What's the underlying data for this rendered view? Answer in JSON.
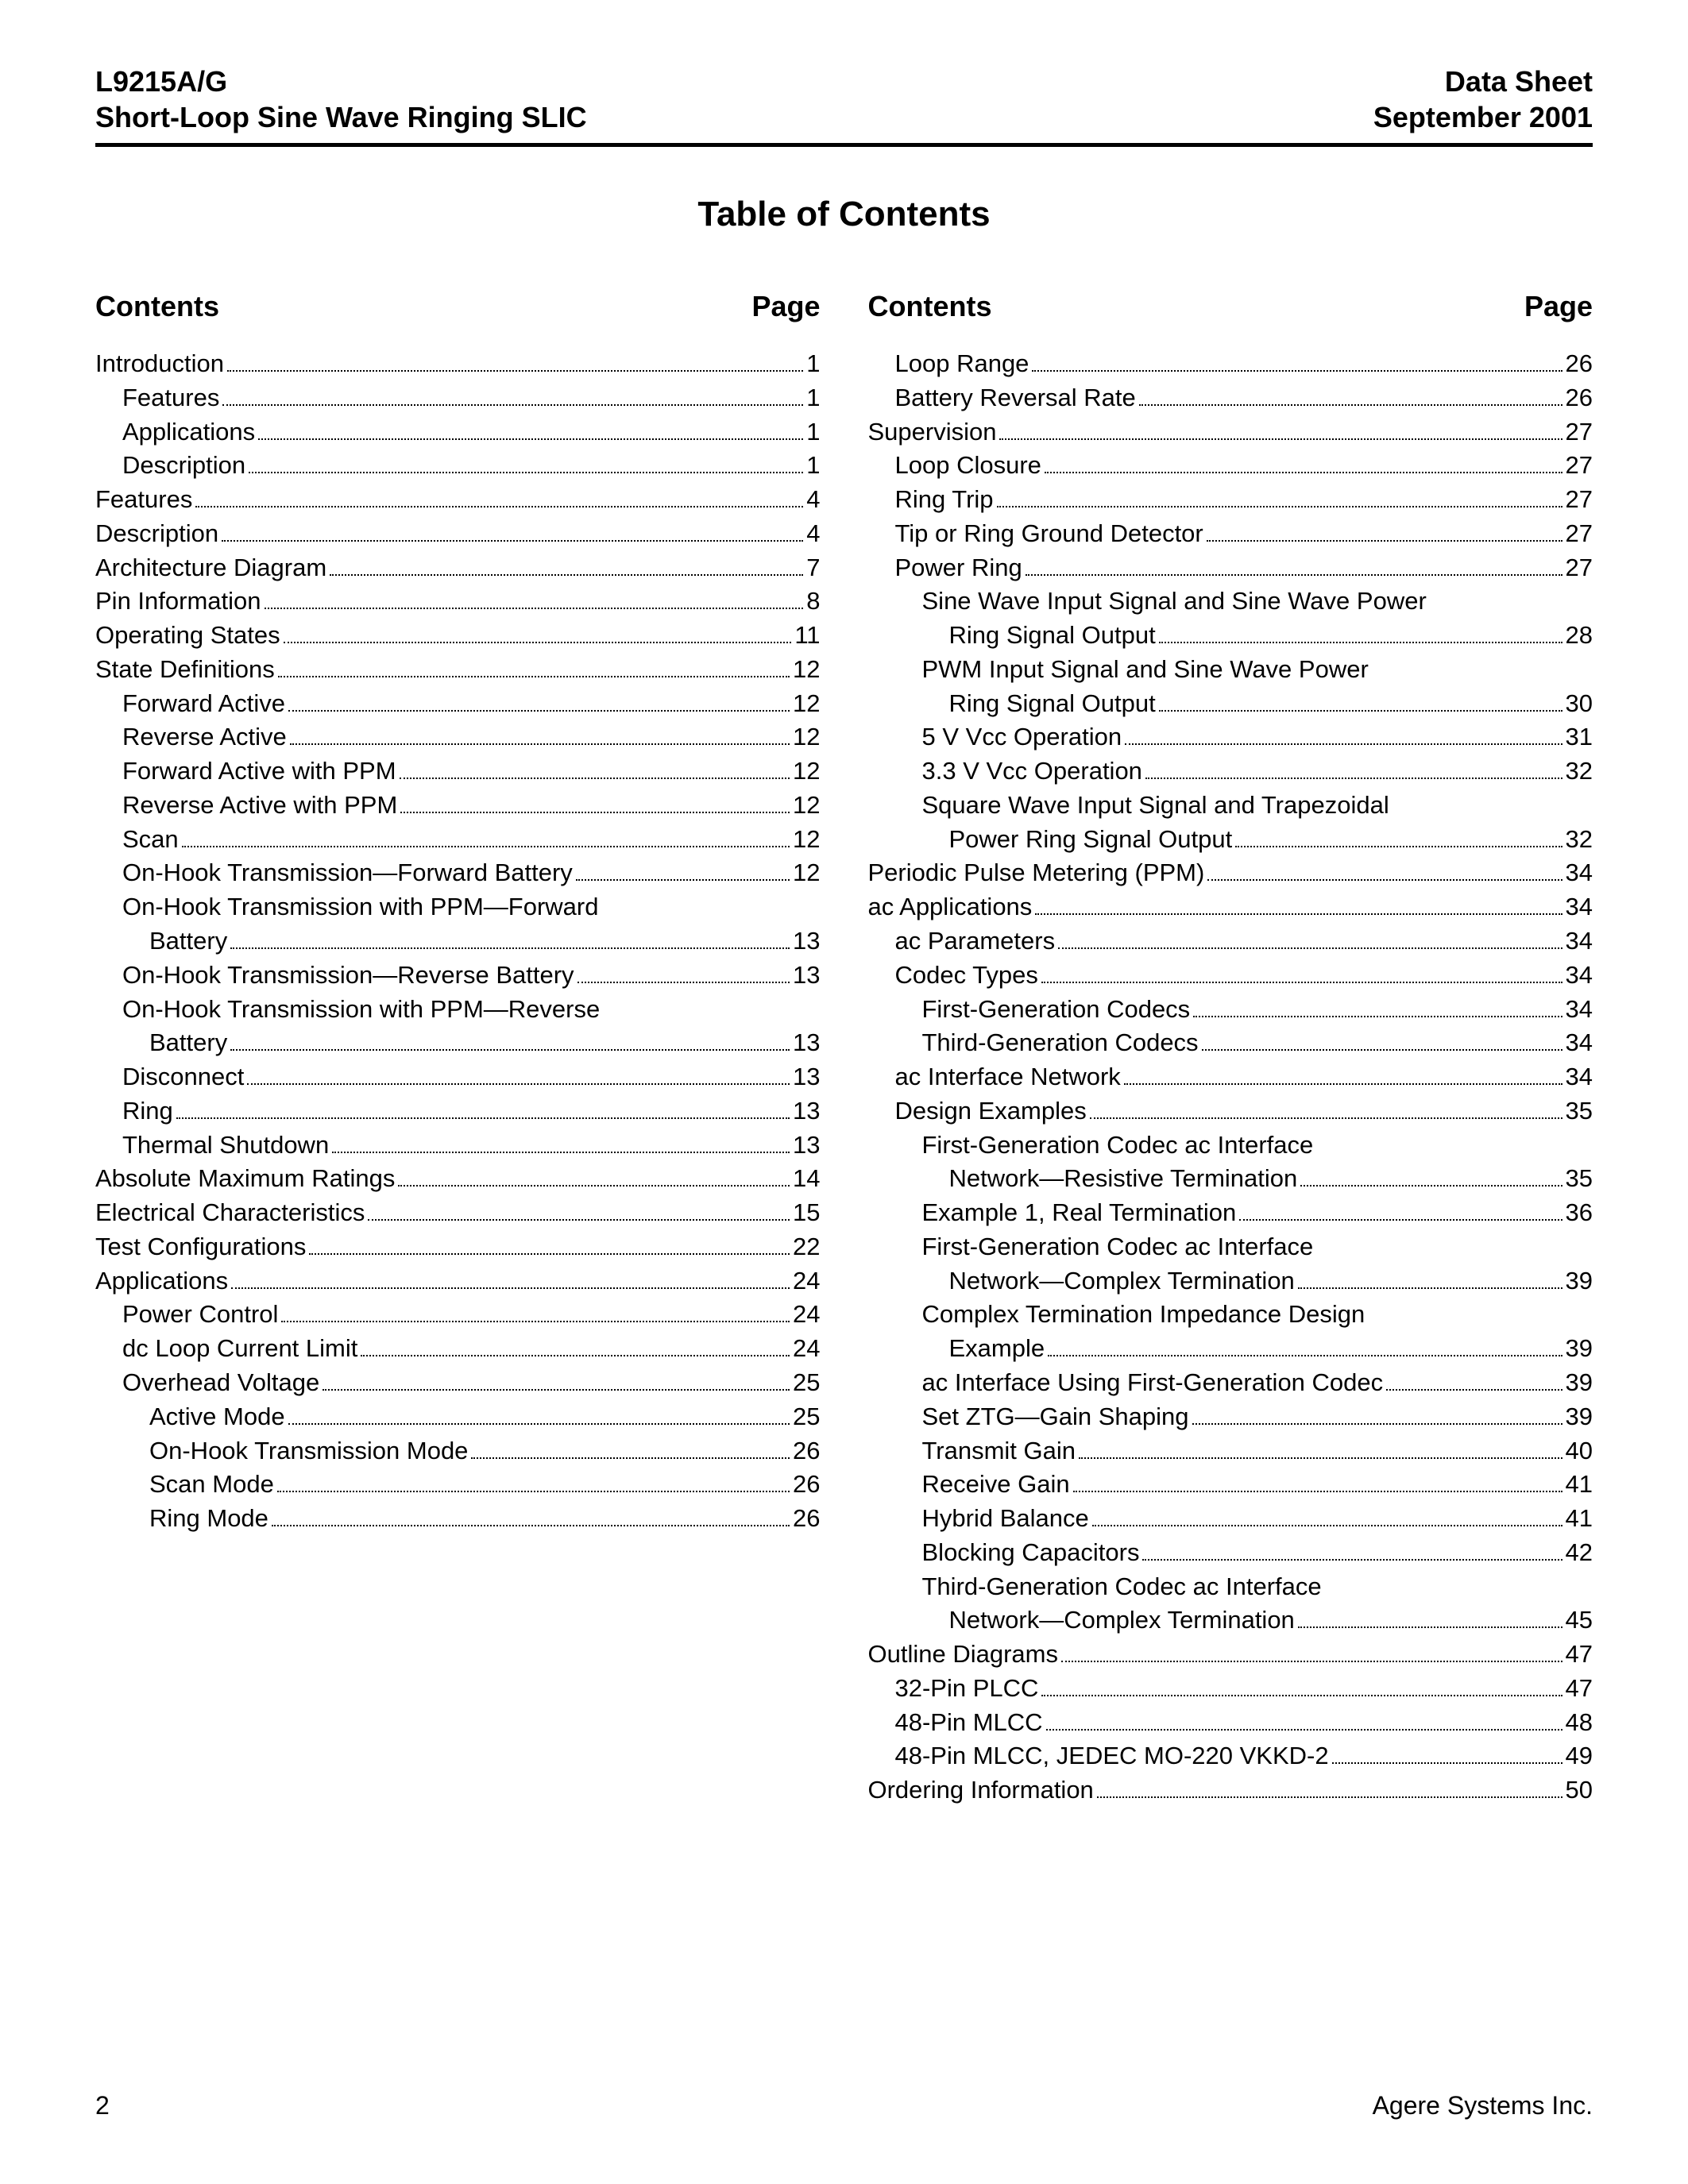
{
  "header": {
    "left_line1": "L9215A/G",
    "left_line2": "Short-Loop Sine Wave Ringing SLIC",
    "right_line1": "Data Sheet",
    "right_line2": "September 2001"
  },
  "title": "Table of Contents",
  "col_head": {
    "contents": "Contents",
    "page": "Page"
  },
  "left_toc": [
    {
      "indent": 0,
      "label": "Introduction",
      "page": "1"
    },
    {
      "indent": 1,
      "label": "Features",
      "page": "1"
    },
    {
      "indent": 1,
      "label": "Applications",
      "page": "1"
    },
    {
      "indent": 1,
      "label": "Description",
      "page": "1"
    },
    {
      "indent": 0,
      "label": "Features",
      "page": "4"
    },
    {
      "indent": 0,
      "label": "Description",
      "page": "4"
    },
    {
      "indent": 0,
      "label": "Architecture Diagram",
      "page": "7"
    },
    {
      "indent": 0,
      "label": "Pin Information",
      "page": "8"
    },
    {
      "indent": 0,
      "label": "Operating States",
      "page": "11"
    },
    {
      "indent": 0,
      "label": "State Definitions",
      "page": "12"
    },
    {
      "indent": 1,
      "label": "Forward Active",
      "page": "12"
    },
    {
      "indent": 1,
      "label": "Reverse Active",
      "page": "12"
    },
    {
      "indent": 1,
      "label": "Forward Active with PPM",
      "page": "12"
    },
    {
      "indent": 1,
      "label": "Reverse Active with PPM",
      "page": "12"
    },
    {
      "indent": 1,
      "label": "Scan",
      "page": "12"
    },
    {
      "indent": 1,
      "label": "On-Hook Transmission—Forward Battery",
      "page": "12"
    },
    {
      "indent": 1,
      "label": "On-Hook Transmission with PPM—Forward",
      "wrap": "Battery",
      "page": "13"
    },
    {
      "indent": 1,
      "label": "On-Hook Transmission—Reverse Battery",
      "page": "13"
    },
    {
      "indent": 1,
      "label": "On-Hook Transmission with PPM—Reverse",
      "wrap": "Battery",
      "page": "13"
    },
    {
      "indent": 1,
      "label": "Disconnect",
      "page": "13"
    },
    {
      "indent": 1,
      "label": "Ring",
      "page": "13"
    },
    {
      "indent": 1,
      "label": "Thermal Shutdown",
      "page": "13"
    },
    {
      "indent": 0,
      "label": "Absolute Maximum Ratings",
      "page": "14"
    },
    {
      "indent": 0,
      "label": "Electrical Characteristics",
      "page": "15"
    },
    {
      "indent": 0,
      "label": "Test Configurations",
      "page": "22"
    },
    {
      "indent": 0,
      "label": "Applications",
      "page": "24"
    },
    {
      "indent": 1,
      "label": "Power Control",
      "page": "24"
    },
    {
      "indent": 1,
      "label": "dc Loop Current Limit",
      "page": "24"
    },
    {
      "indent": 1,
      "label": "Overhead Voltage",
      "page": "25"
    },
    {
      "indent": 2,
      "label": "Active Mode",
      "page": "25"
    },
    {
      "indent": 2,
      "label": "On-Hook Transmission Mode",
      "page": "26"
    },
    {
      "indent": 2,
      "label": "Scan Mode",
      "page": "26"
    },
    {
      "indent": 2,
      "label": "Ring Mode",
      "page": "26"
    }
  ],
  "right_toc": [
    {
      "indent": 1,
      "label": "Loop Range",
      "page": "26"
    },
    {
      "indent": 1,
      "label": "Battery Reversal Rate",
      "page": "26"
    },
    {
      "indent": 0,
      "label": "Supervision",
      "page": "27"
    },
    {
      "indent": 1,
      "label": "Loop Closure",
      "page": "27"
    },
    {
      "indent": 1,
      "label": "Ring Trip",
      "page": "27"
    },
    {
      "indent": 1,
      "label": "Tip or Ring Ground Detector",
      "page": "27"
    },
    {
      "indent": 1,
      "label": "Power Ring",
      "page": "27"
    },
    {
      "indent": 2,
      "label": "Sine Wave Input Signal and Sine Wave Power",
      "wrap": "Ring Signal Output",
      "page": "28"
    },
    {
      "indent": 2,
      "label": "PWM Input Signal and Sine Wave Power",
      "wrap": "Ring Signal Output",
      "page": "30"
    },
    {
      "indent": 2,
      "label": "5 V Vcc Operation",
      "page": "31"
    },
    {
      "indent": 2,
      "label": "3.3 V Vcc Operation",
      "page": "32"
    },
    {
      "indent": 2,
      "label": "Square Wave Input Signal and Trapezoidal",
      "wrap": "Power Ring Signal Output",
      "page": "32"
    },
    {
      "indent": 0,
      "label": "Periodic Pulse Metering (PPM)",
      "page": "34"
    },
    {
      "indent": 0,
      "label": "ac Applications",
      "page": "34"
    },
    {
      "indent": 1,
      "label": "ac Parameters",
      "page": "34"
    },
    {
      "indent": 1,
      "label": "Codec Types",
      "page": "34"
    },
    {
      "indent": 2,
      "label": "First-Generation Codecs",
      "page": "34"
    },
    {
      "indent": 2,
      "label": "Third-Generation Codecs",
      "page": "34"
    },
    {
      "indent": 1,
      "label": "ac Interface Network",
      "page": "34"
    },
    {
      "indent": 1,
      "label": "Design Examples",
      "page": "35"
    },
    {
      "indent": 2,
      "label": "First-Generation Codec ac Interface",
      "wrap": "Network—Resistive Termination",
      "page": "35"
    },
    {
      "indent": 2,
      "label": "Example 1, Real Termination",
      "page": "36"
    },
    {
      "indent": 2,
      "label": "First-Generation Codec ac Interface",
      "wrap": "Network—Complex Termination",
      "page": "39"
    },
    {
      "indent": 2,
      "label": "Complex Termination Impedance Design",
      "wrap": "Example",
      "page": "39"
    },
    {
      "indent": 2,
      "label": "ac Interface Using First-Generation Codec",
      "page": "39"
    },
    {
      "indent": 2,
      "label": "Set ZTG—Gain Shaping",
      "page": "39"
    },
    {
      "indent": 2,
      "label": "Transmit Gain",
      "page": "40"
    },
    {
      "indent": 2,
      "label": "Receive Gain",
      "page": "41"
    },
    {
      "indent": 2,
      "label": "Hybrid Balance",
      "page": "41"
    },
    {
      "indent": 2,
      "label": "Blocking Capacitors",
      "page": "42"
    },
    {
      "indent": 2,
      "label": "Third-Generation Codec ac Interface",
      "wrap": "Network—Complex Termination",
      "page": "45"
    },
    {
      "indent": 0,
      "label": "Outline Diagrams",
      "page": "47"
    },
    {
      "indent": 1,
      "label": "32-Pin PLCC",
      "page": "47"
    },
    {
      "indent": 1,
      "label": "48-Pin MLCC",
      "page": "48"
    },
    {
      "indent": 1,
      "label": "48-Pin MLCC, JEDEC MO-220 VKKD-2",
      "page": "49"
    },
    {
      "indent": 0,
      "label": "Ordering Information",
      "page": "50"
    }
  ],
  "footer": {
    "page_number": "2",
    "company": "Agere Systems Inc."
  }
}
